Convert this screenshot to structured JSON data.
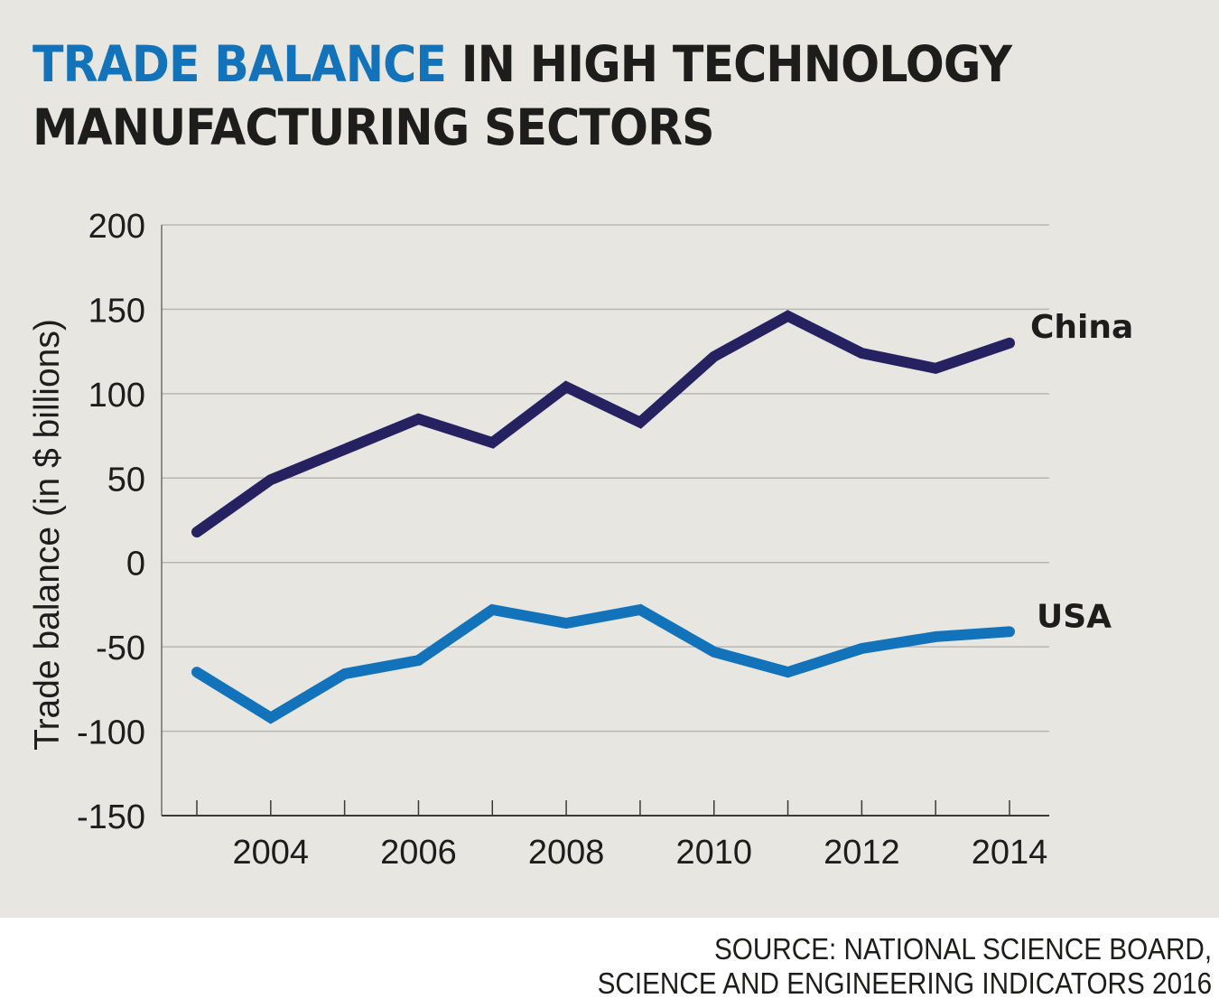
{
  "title": {
    "highlight": "TRADE BALANCE",
    "rest_line1": " IN HIGH TECHNOLOGY",
    "line2": "MANUFACTURING SECTORS"
  },
  "source": {
    "line1": "SOURCE: NATIONAL SCIENCE BOARD,",
    "line2": "SCIENCE AND ENGINEERING INDICATORS 2016"
  },
  "colors": {
    "background": "#e7e6e1",
    "title_highlight": "#1273bb",
    "china": "#262262",
    "usa": "#1273bb",
    "text": "#1d1d1b",
    "grid": "#b8b7b3"
  },
  "chart_data": {
    "type": "line",
    "title": "TRADE BALANCE IN HIGH TECHNOLOGY MANUFACTURING SECTORS",
    "xlabel": "",
    "ylabel": "Trade balance (in $ billions)",
    "x": [
      2003,
      2004,
      2005,
      2006,
      2007,
      2008,
      2009,
      2010,
      2011,
      2012,
      2013,
      2014
    ],
    "xlim": [
      2003,
      2014
    ],
    "ylim": [
      -150,
      200
    ],
    "yticks": [
      200,
      150,
      100,
      50,
      0,
      -50,
      -100,
      -150
    ],
    "ytick_labels": [
      "200",
      "150",
      "100",
      "50",
      "0",
      "-50",
      "-100",
      "-150"
    ],
    "xtick_labels": [
      {
        "value": 2004,
        "label": "2004"
      },
      {
        "value": 2006,
        "label": "2006"
      },
      {
        "value": 2008,
        "label": "2008"
      },
      {
        "value": 2010,
        "label": "2010"
      },
      {
        "value": 2012,
        "label": "2012"
      },
      {
        "value": 2014,
        "label": "2014"
      }
    ],
    "grid": true,
    "legend": "direct labels at line ends (right)",
    "series": [
      {
        "name": "China",
        "color": "#262262",
        "values": [
          18,
          49,
          67,
          85,
          71,
          104,
          83,
          122,
          146,
          124,
          115,
          130
        ]
      },
      {
        "name": "USA",
        "color": "#1273bb",
        "values": [
          -65,
          -92,
          -66,
          -58,
          -28,
          -36,
          -28,
          -53,
          -65,
          -51,
          -44,
          -41
        ]
      }
    ]
  }
}
